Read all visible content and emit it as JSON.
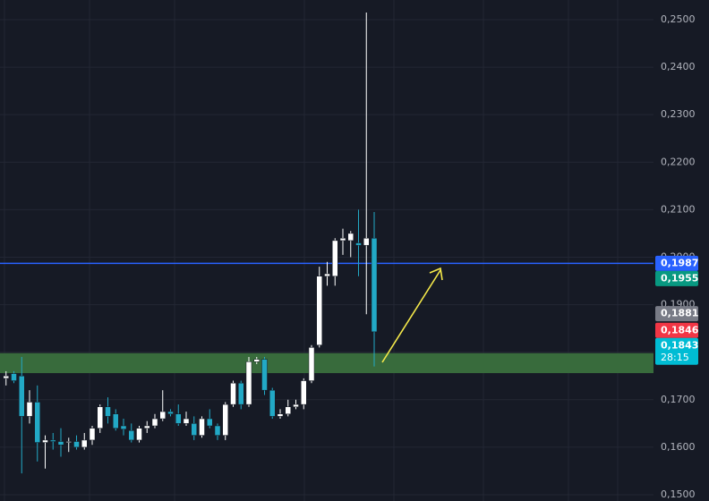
{
  "chart_data": {
    "type": "candlestick",
    "up_color": "#ffffff",
    "down_color": "#22a9c6",
    "open": [
      0.1745,
      0.1755,
      0.175,
      0.1665,
      0.1695,
      0.161,
      0.1615,
      0.1612,
      0.161,
      0.1612,
      0.16,
      0.1615,
      0.164,
      0.1685,
      0.167,
      0.1645,
      0.1635,
      0.1615,
      0.164,
      0.1645,
      0.166,
      0.1675,
      0.167,
      0.165,
      0.165,
      0.1625,
      0.166,
      0.1645,
      0.1625,
      0.169,
      0.1735,
      0.169,
      0.178,
      0.1785,
      0.172,
      0.1665,
      0.167,
      0.1685,
      0.169,
      0.174,
      0.1815,
      0.196,
      0.196,
      0.2035,
      0.2035,
      0.203,
      0.2025,
      0.204
    ],
    "high": [
      0.176,
      0.176,
      0.179,
      0.172,
      0.173,
      0.1625,
      0.163,
      0.164,
      0.162,
      0.1625,
      0.163,
      0.1645,
      0.169,
      0.1705,
      0.168,
      0.166,
      0.165,
      0.1645,
      0.1655,
      0.167,
      0.172,
      0.168,
      0.169,
      0.1675,
      0.1665,
      0.1665,
      0.168,
      0.165,
      0.1695,
      0.174,
      0.174,
      0.179,
      0.179,
      0.179,
      0.1725,
      0.168,
      0.17,
      0.17,
      0.1745,
      0.1815,
      0.198,
      0.199,
      0.204,
      0.206,
      0.2055,
      0.21,
      0.2515,
      0.2095
    ],
    "low": [
      0.173,
      0.1735,
      0.1545,
      0.165,
      0.157,
      0.1555,
      0.1595,
      0.158,
      0.159,
      0.1595,
      0.1595,
      0.1605,
      0.163,
      0.165,
      0.1635,
      0.1625,
      0.161,
      0.161,
      0.163,
      0.164,
      0.1655,
      0.1665,
      0.1645,
      0.1645,
      0.1615,
      0.162,
      0.164,
      0.1615,
      0.1615,
      0.1685,
      0.168,
      0.1685,
      0.1775,
      0.171,
      0.166,
      0.166,
      0.1665,
      0.168,
      0.168,
      0.1735,
      0.181,
      0.194,
      0.194,
      0.2005,
      0.2,
      0.196,
      0.188,
      0.177
    ],
    "close": [
      0.175,
      0.174,
      0.1665,
      0.1695,
      0.161,
      0.1615,
      0.1612,
      0.1605,
      0.1612,
      0.16,
      0.1615,
      0.164,
      0.1685,
      0.1665,
      0.164,
      0.1638,
      0.1615,
      0.164,
      0.1645,
      0.166,
      0.1675,
      0.167,
      0.165,
      0.166,
      0.1625,
      0.166,
      0.1645,
      0.1625,
      0.169,
      0.1735,
      0.169,
      0.178,
      0.1785,
      0.172,
      0.1665,
      0.167,
      0.1685,
      0.169,
      0.174,
      0.181,
      0.196,
      0.1965,
      0.2035,
      0.204,
      0.205,
      0.2025,
      0.204,
      0.1843
    ],
    "ylim": [
      0.15,
      0.2515
    ],
    "yticks": [
      {
        "value": 0.15,
        "label": "0,1500"
      },
      {
        "value": 0.16,
        "label": "0,1600"
      },
      {
        "value": 0.17,
        "label": "0,1700"
      },
      {
        "value": 0.18,
        "label": "0,1800"
      },
      {
        "value": 0.19,
        "label": "0,1900"
      },
      {
        "value": 0.2,
        "label": "0,2000"
      },
      {
        "value": 0.21,
        "label": "0,2100"
      },
      {
        "value": 0.22,
        "label": "0,2200"
      },
      {
        "value": 0.23,
        "label": "0,2300"
      },
      {
        "value": 0.24,
        "label": "0,2400"
      },
      {
        "value": 0.25,
        "label": "0,2500"
      }
    ],
    "grid": true,
    "zone": {
      "low": 0.1756,
      "high": 0.1798,
      "color": "#386b3c"
    },
    "price_line": {
      "value": 0.1987,
      "color": "#2962ff"
    },
    "price_tags": [
      {
        "value": 0.1987,
        "label": "0,1987",
        "color": "#2962ff"
      },
      {
        "value": 0.1955,
        "label": "0,1955",
        "color": "#089981"
      },
      {
        "value": 0.1881,
        "label": "0,1881",
        "color": "#787b86"
      },
      {
        "value": 0.1846,
        "label": "0,1846",
        "color": "#f23645"
      },
      {
        "value": 0.1843,
        "label": "0,1843",
        "sublabel": "28:15",
        "color": "#00bcd4"
      }
    ]
  }
}
